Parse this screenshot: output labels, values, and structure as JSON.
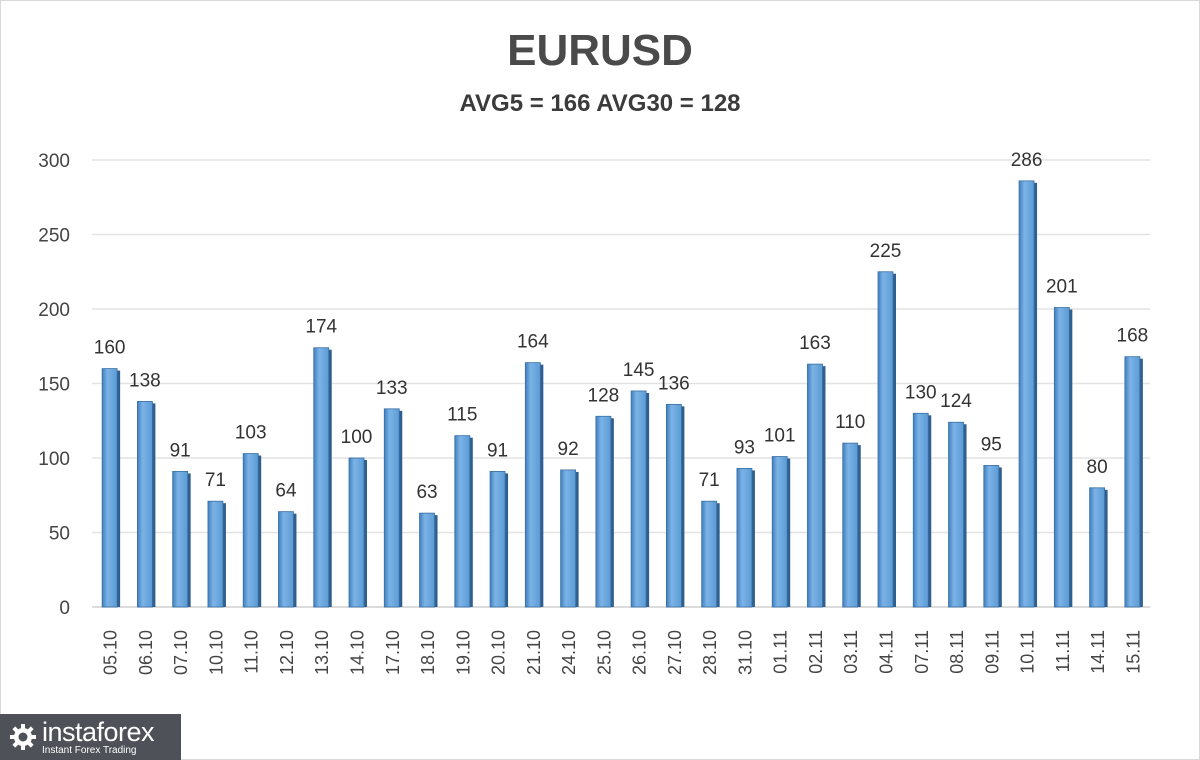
{
  "chart_data": {
    "type": "bar",
    "title": "EURUSD",
    "subtitle": "AVG5 = 166 AVG30 = 128",
    "categories": [
      "05.10",
      "06.10",
      "07.10",
      "10.10",
      "11.10",
      "12.10",
      "13.10",
      "14.10",
      "17.10",
      "18.10",
      "19.10",
      "20.10",
      "21.10",
      "24.10",
      "25.10",
      "26.10",
      "27.10",
      "28.10",
      "31.10",
      "01.11",
      "02.11",
      "03.11",
      "04.11",
      "07.11",
      "08.11",
      "09.11",
      "10.11",
      "11.11",
      "14.11",
      "15.11"
    ],
    "values": [
      160,
      138,
      91,
      71,
      103,
      64,
      174,
      100,
      133,
      63,
      115,
      91,
      164,
      92,
      128,
      145,
      136,
      71,
      93,
      101,
      163,
      110,
      225,
      130,
      124,
      95,
      286,
      201,
      80,
      168
    ],
    "xlabel": "",
    "ylabel": "",
    "ylim": [
      0,
      300
    ],
    "yticks": [
      0,
      50,
      100,
      150,
      200,
      250,
      300
    ],
    "grid": true,
    "bar_color": "#5b9bd5",
    "data_labels": true
  },
  "watermark": {
    "brand": "instaforex",
    "tagline": "Instant Forex Trading",
    "icon": "gear-logo-icon"
  }
}
